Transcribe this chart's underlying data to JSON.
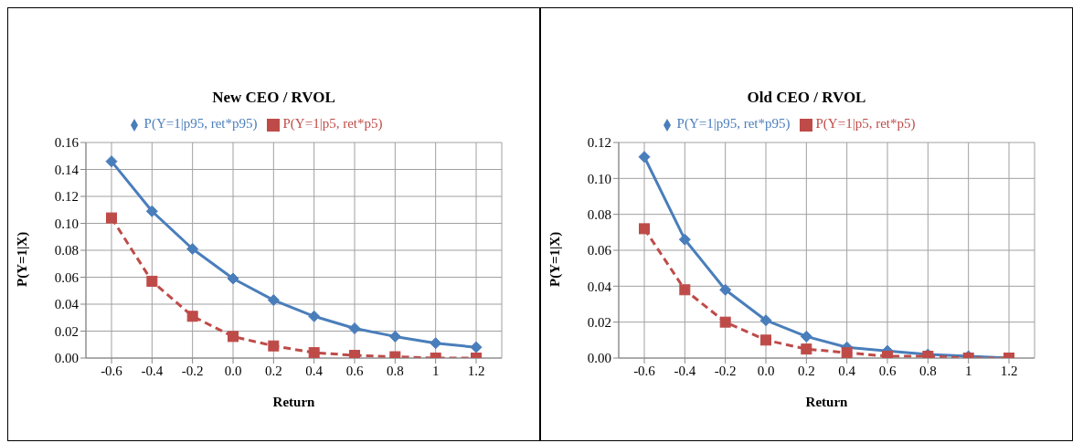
{
  "chart_data": [
    {
      "type": "line",
      "title": "New CEO / RVOL",
      "xlabel": "Return",
      "ylabel": "P(Y=1|X)",
      "categories": [
        "-0.6",
        "-0.4",
        "-0.2",
        "0.0",
        "0.2",
        "0.4",
        "0.6",
        "0.8",
        "1",
        "1.2"
      ],
      "series": [
        {
          "name": "P(Y=1|p95, ret*p95)",
          "color": "#4a7ebb",
          "marker": "diamond",
          "line_style": "solid",
          "values": [
            0.146,
            0.109,
            0.081,
            0.059,
            0.043,
            0.031,
            0.022,
            0.016,
            0.011,
            0.008
          ]
        },
        {
          "name": "P(Y=1|p5, ret*p5)",
          "color": "#be4b48",
          "marker": "square",
          "line_style": "dashed",
          "values": [
            0.104,
            0.057,
            0.031,
            0.016,
            0.009,
            0.004,
            0.002,
            0.001,
            0.0,
            0.0
          ]
        }
      ],
      "ylim": [
        0,
        0.16
      ],
      "yticks": [
        {
          "value": 0,
          "label": "0.00"
        },
        {
          "value": 0.02,
          "label": "0.02"
        },
        {
          "value": 0.04,
          "label": "0.04"
        },
        {
          "value": 0.06,
          "label": "0.06"
        },
        {
          "value": 0.08,
          "label": "0.08"
        },
        {
          "value": 0.1,
          "label": "0.10"
        },
        {
          "value": 0.12,
          "label": "0.12"
        },
        {
          "value": 0.14,
          "label": "0.14"
        },
        {
          "value": 0.16,
          "label": "0.16"
        }
      ],
      "grid": true,
      "legend": "top"
    },
    {
      "type": "line",
      "title": "Old CEO / RVOL",
      "xlabel": "Return",
      "ylabel": "P(Y=1|X)",
      "categories": [
        "-0.6",
        "-0.4",
        "-0.2",
        "0.0",
        "0.2",
        "0.4",
        "0.6",
        "0.8",
        "1",
        "1.2"
      ],
      "series": [
        {
          "name": "P(Y=1|p95, ret*p95)",
          "color": "#4a7ebb",
          "marker": "diamond",
          "line_style": "solid",
          "values": [
            0.112,
            0.066,
            0.038,
            0.021,
            0.012,
            0.006,
            0.004,
            0.002,
            0.001,
            0.0
          ]
        },
        {
          "name": "P(Y=1|p5, ret*p5)",
          "color": "#be4b48",
          "marker": "square",
          "line_style": "dashed",
          "values": [
            0.072,
            0.038,
            0.02,
            0.01,
            0.005,
            0.003,
            0.001,
            0.001,
            0.0,
            0.0
          ]
        }
      ],
      "ylim": [
        0,
        0.12
      ],
      "yticks": [
        {
          "value": 0,
          "label": "0.00"
        },
        {
          "value": 0.02,
          "label": "0.02"
        },
        {
          "value": 0.04,
          "label": "0.04"
        },
        {
          "value": 0.06,
          "label": "0.06"
        },
        {
          "value": 0.08,
          "label": "0.08"
        },
        {
          "value": 0.1,
          "label": "0.10"
        },
        {
          "value": 0.12,
          "label": "0.12"
        }
      ],
      "grid": true,
      "legend": "top"
    }
  ]
}
